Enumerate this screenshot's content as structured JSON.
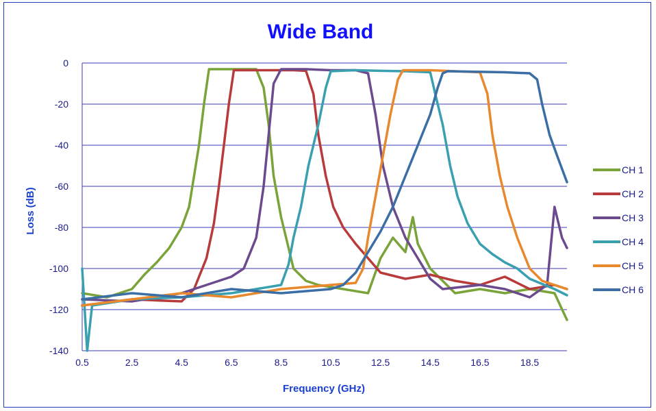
{
  "chart_data": {
    "type": "line",
    "title": "Wide Band",
    "xlabel": "Frequency (GHz)",
    "ylabel": "Loss (dB)",
    "xlim": [
      0.5,
      20.0
    ],
    "ylim": [
      -140,
      0
    ],
    "xticks": [
      0.5,
      2.5,
      4.5,
      6.5,
      8.5,
      10.5,
      12.5,
      14.5,
      16.5,
      18.5
    ],
    "yticks": [
      0,
      -20,
      -40,
      -60,
      -80,
      -100,
      -120,
      -140
    ],
    "grid": "horizontal",
    "legend": "right",
    "series": [
      {
        "name": "CH 1",
        "color": "#7aa33a",
        "x": [
          0.5,
          1.5,
          2.5,
          3.0,
          3.5,
          4.0,
          4.5,
          4.8,
          5.0,
          5.2,
          5.4,
          5.6,
          6.5,
          7.5,
          7.8,
          8.0,
          8.2,
          8.5,
          8.8,
          9.0,
          9.5,
          10.0,
          11.0,
          12.0,
          12.5,
          13.0,
          13.5,
          13.8,
          14.0,
          14.5,
          15.5,
          16.5,
          17.5,
          18.5,
          19.5,
          20.0
        ],
        "y": [
          -112,
          -114,
          -110,
          -103,
          -97,
          -90,
          -80,
          -70,
          -55,
          -40,
          -20,
          -3,
          -3,
          -3,
          -12,
          -30,
          -55,
          -75,
          -90,
          -100,
          -106,
          -108,
          -110,
          -112,
          -95,
          -85,
          -92,
          -75,
          -88,
          -100,
          -112,
          -110,
          -112,
          -110,
          -112,
          -125
        ]
      },
      {
        "name": "CH 2",
        "color": "#b83b3b",
        "x": [
          0.5,
          2.5,
          4.5,
          5.0,
          5.5,
          5.8,
          6.0,
          6.2,
          6.4,
          6.6,
          8.0,
          9.0,
          9.5,
          9.8,
          10.0,
          10.3,
          10.6,
          11.0,
          11.5,
          12.0,
          12.5,
          13.5,
          14.5,
          15.5,
          16.5,
          17.5,
          18.5,
          19.5,
          20.0
        ],
        "y": [
          -118,
          -115,
          -116,
          -110,
          -95,
          -78,
          -60,
          -40,
          -20,
          -3.5,
          -3.5,
          -3.5,
          -3.8,
          -15,
          -35,
          -55,
          -70,
          -80,
          -88,
          -95,
          -102,
          -105,
          -103,
          -106,
          -108,
          -104,
          -110,
          -108,
          -110
        ]
      },
      {
        "name": "CH 3",
        "color": "#6b4a8e",
        "x": [
          0.5,
          2.5,
          4.5,
          6.5,
          7.0,
          7.5,
          7.8,
          8.0,
          8.2,
          8.5,
          9.5,
          10.5,
          11.5,
          12.0,
          12.3,
          12.6,
          13.0,
          13.5,
          14.0,
          14.5,
          15.0,
          16.5,
          17.5,
          18.5,
          19.2,
          19.5,
          19.8,
          20.0
        ],
        "y": [
          -115,
          -116,
          -112,
          -104,
          -100,
          -85,
          -60,
          -35,
          -10,
          -3,
          -3,
          -3.5,
          -3.5,
          -5,
          -25,
          -50,
          -70,
          -85,
          -95,
          -105,
          -110,
          -108,
          -110,
          -114,
          -108,
          -70,
          -85,
          -90
        ]
      },
      {
        "name": "CH 4",
        "color": "#3aa0b0",
        "x": [
          0.5,
          0.7,
          0.9,
          2.5,
          4.5,
          6.5,
          8.5,
          8.8,
          9.0,
          9.3,
          9.6,
          10.0,
          10.3,
          10.5,
          11.5,
          12.5,
          13.5,
          14.5,
          14.7,
          15.0,
          15.3,
          15.6,
          16.0,
          16.5,
          17.0,
          17.5,
          18.0,
          18.5,
          19.5,
          20.0
        ],
        "y": [
          -100,
          -140,
          -118,
          -115,
          -114,
          -112,
          -108,
          -98,
          -85,
          -70,
          -50,
          -30,
          -12,
          -4,
          -3.5,
          -3.8,
          -4,
          -4.5,
          -15,
          -30,
          -50,
          -65,
          -78,
          -88,
          -93,
          -97,
          -100,
          -105,
          -110,
          -113
        ]
      },
      {
        "name": "CH 5",
        "color": "#e8892e",
        "x": [
          0.5,
          2.5,
          4.5,
          6.5,
          8.5,
          10.5,
          11.5,
          11.8,
          12.0,
          12.3,
          12.6,
          12.9,
          13.2,
          13.4,
          14.5,
          15.5,
          16.5,
          16.8,
          17.0,
          17.3,
          17.6,
          18.0,
          18.5,
          19.0,
          19.5,
          20.0
        ],
        "y": [
          -118,
          -115,
          -112,
          -114,
          -110,
          -108,
          -107,
          -100,
          -85,
          -65,
          -45,
          -25,
          -8,
          -3.5,
          -3.5,
          -4,
          -4.5,
          -15,
          -35,
          -55,
          -70,
          -85,
          -100,
          -106,
          -108,
          -110
        ]
      },
      {
        "name": "CH 6",
        "color": "#3a6ea5",
        "x": [
          0.5,
          2.5,
          4.5,
          6.5,
          8.5,
          10.5,
          11.0,
          11.5,
          12.0,
          12.5,
          13.0,
          13.5,
          14.0,
          14.5,
          14.8,
          15.0,
          15.2,
          17.5,
          18.5,
          18.8,
          19.0,
          19.3,
          19.6,
          20.0
        ],
        "y": [
          -115,
          -112,
          -114,
          -110,
          -112,
          -110,
          -108,
          -102,
          -92,
          -82,
          -70,
          -55,
          -40,
          -25,
          -12,
          -5,
          -4,
          -4.5,
          -5,
          -8,
          -20,
          -35,
          -45,
          -58
        ]
      }
    ]
  }
}
